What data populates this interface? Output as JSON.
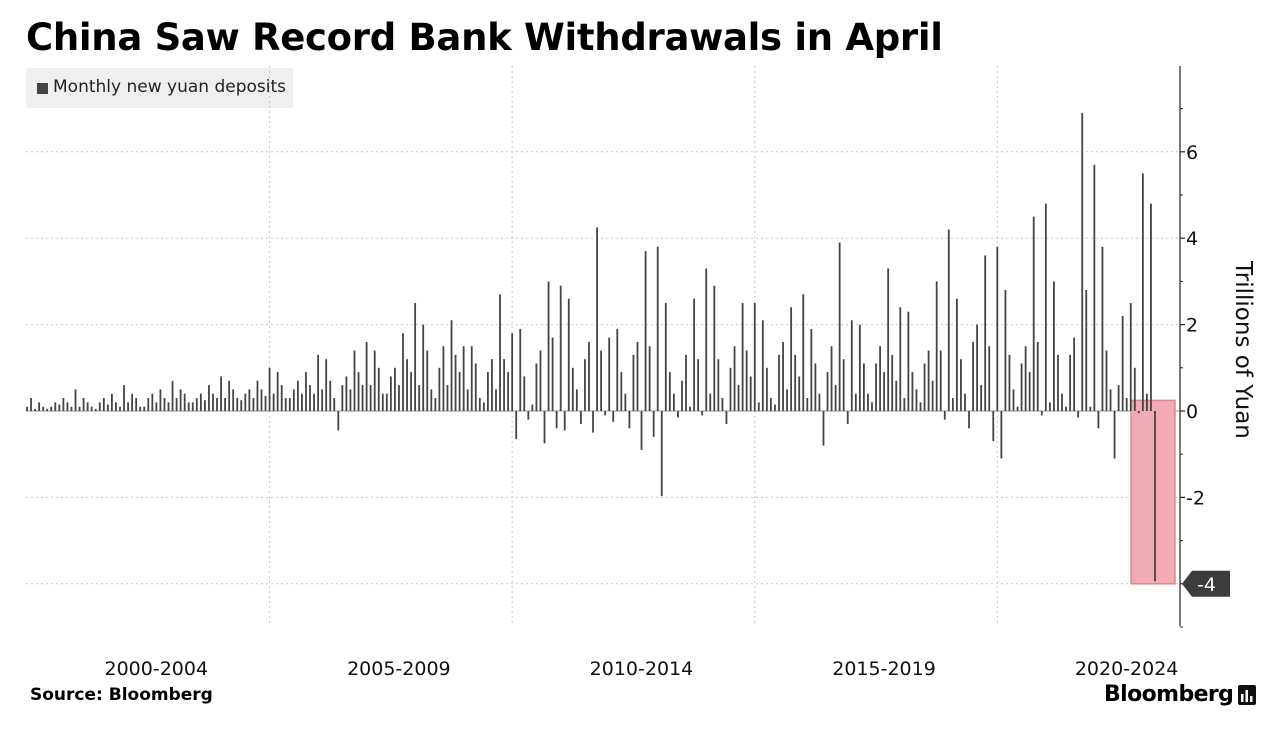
{
  "header": {
    "title": "China Saw Record Bank Withdrawals in April"
  },
  "footer": {
    "source": "Source: Bloomberg",
    "brand": "Bloomberg"
  },
  "icons": {
    "brand_icon": "bloomberg-terminal-icon"
  },
  "colors": {
    "bars": "#444444",
    "highlight_fill": "#f2aab4",
    "highlight_border": "#d98a95",
    "callout": "#3c3c3c",
    "grid": "#c8c8c8"
  },
  "chart_data": {
    "type": "bar",
    "title": "China Saw Record Bank Withdrawals in April",
    "legend": {
      "position": "top-left",
      "entries": [
        "Monthly new yuan deposits"
      ]
    },
    "ylabel": "Trillions of Yuan",
    "ylim": [
      -5,
      8
    ],
    "yticks": [
      -4,
      -2,
      0,
      2,
      4,
      6
    ],
    "y_axis_side": "right",
    "x_period_labels": [
      "2000-2004",
      "2005-2009",
      "2010-2014",
      "2015-2019",
      "2020-2024"
    ],
    "x_start": "2000-01",
    "x_end": "2025-04",
    "grid": true,
    "highlight": {
      "period": "2025-04",
      "value": -3.94,
      "callout_label": "-4"
    },
    "series": [
      {
        "name": "Monthly new yuan deposits",
        "values": [
          0.1,
          0.3,
          0.05,
          0.2,
          0.1,
          0.05,
          0.1,
          0.2,
          0.15,
          0.3,
          0.2,
          0.1,
          0.5,
          0.1,
          0.3,
          0.2,
          0.1,
          0.05,
          0.2,
          0.3,
          0.15,
          0.4,
          0.2,
          0.1,
          0.6,
          0.2,
          0.4,
          0.3,
          0.1,
          0.1,
          0.3,
          0.4,
          0.2,
          0.5,
          0.3,
          0.2,
          0.7,
          0.3,
          0.5,
          0.4,
          0.2,
          0.2,
          0.3,
          0.4,
          0.25,
          0.6,
          0.4,
          0.3,
          0.8,
          0.3,
          0.7,
          0.5,
          0.3,
          0.25,
          0.4,
          0.5,
          0.3,
          0.7,
          0.5,
          0.35,
          1.0,
          0.4,
          0.9,
          0.6,
          0.3,
          0.3,
          0.5,
          0.7,
          0.4,
          0.9,
          0.6,
          0.4,
          1.3,
          0.5,
          1.2,
          0.7,
          0.3,
          -0.45,
          0.6,
          0.8,
          0.5,
          1.4,
          0.9,
          0.6,
          1.6,
          0.6,
          1.4,
          1.0,
          0.4,
          0.4,
          0.8,
          1.0,
          0.6,
          1.8,
          1.2,
          0.9,
          2.5,
          0.6,
          2.0,
          1.4,
          0.5,
          0.3,
          1.0,
          1.5,
          0.6,
          2.1,
          1.3,
          0.9,
          1.5,
          0.5,
          1.5,
          1.1,
          0.3,
          0.2,
          0.9,
          1.2,
          0.5,
          2.7,
          1.2,
          0.9,
          1.8,
          -0.65,
          1.9,
          0.8,
          -0.2,
          0.15,
          1.1,
          1.4,
          -0.75,
          3.0,
          1.7,
          -0.4,
          2.9,
          -0.45,
          2.6,
          1.0,
          0.5,
          -0.3,
          1.2,
          1.6,
          -0.5,
          4.25,
          1.4,
          -0.1,
          1.7,
          -0.25,
          1.9,
          0.9,
          0.4,
          -0.4,
          1.3,
          1.6,
          -0.9,
          3.7,
          1.5,
          -0.6,
          3.8,
          -1.97,
          2.5,
          0.9,
          0.4,
          -0.15,
          0.7,
          1.3,
          0.1,
          2.6,
          1.2,
          -0.1,
          3.3,
          0.4,
          2.9,
          1.2,
          0.3,
          -0.3,
          1.0,
          1.5,
          0.6,
          2.5,
          1.4,
          0.8,
          2.5,
          0.2,
          2.1,
          1.0,
          0.3,
          0.15,
          1.3,
          1.6,
          0.5,
          2.4,
          1.3,
          0.8,
          2.7,
          0.3,
          1.9,
          1.1,
          0.4,
          -0.8,
          0.9,
          1.5,
          0.6,
          3.9,
          1.2,
          -0.3,
          2.1,
          0.4,
          2.0,
          1.1,
          0.4,
          0.2,
          1.1,
          1.5,
          0.9,
          3.3,
          1.3,
          0.7,
          2.4,
          0.3,
          2.3,
          0.9,
          0.5,
          0.2,
          1.1,
          1.4,
          0.7,
          3.0,
          1.4,
          -0.2,
          4.2,
          0.3,
          2.6,
          1.2,
          0.4,
          -0.4,
          1.6,
          2.0,
          0.6,
          3.6,
          1.5,
          -0.7,
          3.8,
          -1.1,
          2.8,
          1.3,
          0.5,
          0.1,
          1.1,
          1.5,
          0.9,
          4.5,
          1.6,
          -0.1,
          4.8,
          0.2,
          3.0,
          1.3,
          0.4,
          0.1,
          1.3,
          1.7,
          -0.15,
          6.9,
          2.8,
          0.1,
          5.7,
          -0.4,
          3.8,
          1.4,
          0.5,
          -1.1,
          0.6,
          2.2,
          0.3,
          2.5,
          1.0,
          -0.05,
          5.5,
          0.4,
          4.8,
          -3.94
        ]
      }
    ]
  }
}
